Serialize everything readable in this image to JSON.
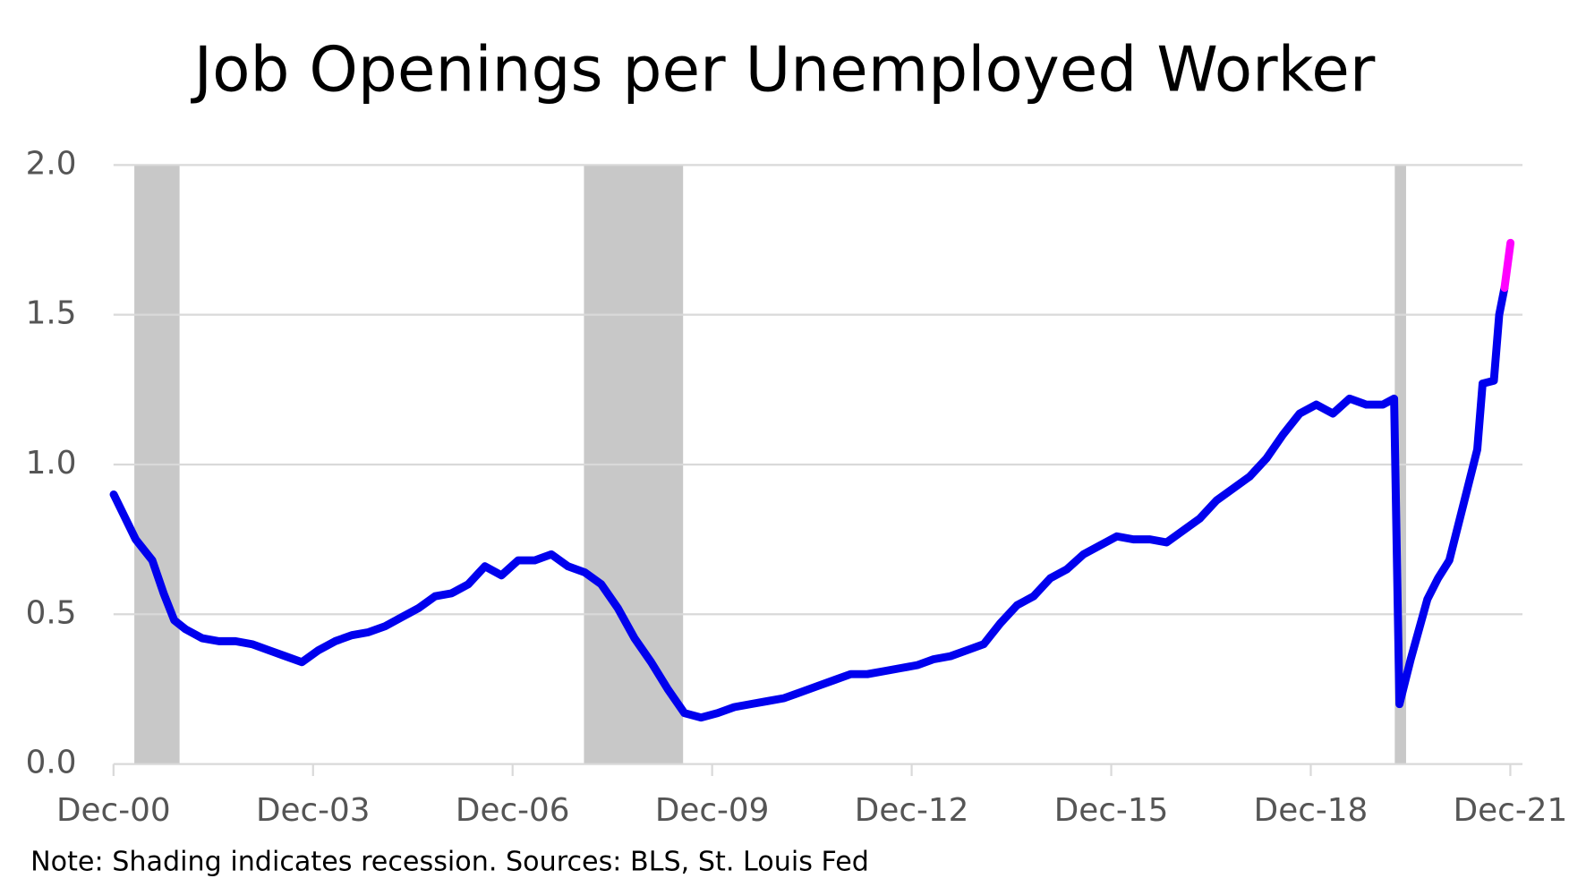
{
  "chart_data": {
    "type": "line",
    "title": "Job Openings per Unemployed Worker",
    "note": "Note: Shading indicates recession. Sources: BLS, St. Louis Fed",
    "x": [
      2000.92,
      2001.25,
      2001.5,
      2001.67,
      2001.83,
      2002.0,
      2002.25,
      2002.5,
      2002.75,
      2003.0,
      2003.25,
      2003.5,
      2003.75,
      2004.0,
      2004.25,
      2004.5,
      2004.75,
      2005.0,
      2005.25,
      2005.5,
      2005.75,
      2006.0,
      2006.25,
      2006.5,
      2006.75,
      2007.0,
      2007.25,
      2007.5,
      2007.75,
      2008.0,
      2008.25,
      2008.5,
      2008.75,
      2009.0,
      2009.25,
      2009.5,
      2009.75,
      2010.0,
      2010.25,
      2010.5,
      2010.75,
      2011.0,
      2011.25,
      2011.5,
      2011.75,
      2012.0,
      2012.25,
      2012.5,
      2012.75,
      2013.0,
      2013.25,
      2013.5,
      2013.75,
      2014.0,
      2014.25,
      2014.5,
      2014.75,
      2015.0,
      2015.25,
      2015.5,
      2015.75,
      2016.0,
      2016.25,
      2016.5,
      2016.75,
      2017.0,
      2017.25,
      2017.5,
      2017.75,
      2018.0,
      2018.25,
      2018.5,
      2018.75,
      2019.0,
      2019.25,
      2019.5,
      2019.75,
      2020.0,
      2020.17,
      2020.25,
      2020.42,
      2020.67,
      2020.83,
      2021.0,
      2021.25,
      2021.42,
      2021.5,
      2021.67,
      2021.75,
      2021.83,
      2021.92
    ],
    "series": [
      {
        "color": "#0000ee",
        "values": [
          0.9,
          0.75,
          0.68,
          0.57,
          0.48,
          0.45,
          0.42,
          0.41,
          0.41,
          0.4,
          0.38,
          0.36,
          0.34,
          0.38,
          0.41,
          0.43,
          0.44,
          0.46,
          0.49,
          0.52,
          0.56,
          0.57,
          0.6,
          0.66,
          0.63,
          0.68,
          0.68,
          0.7,
          0.66,
          0.64,
          0.6,
          0.52,
          0.42,
          0.34,
          0.25,
          0.17,
          0.155,
          0.17,
          0.19,
          0.2,
          0.21,
          0.22,
          0.24,
          0.26,
          0.28,
          0.3,
          0.3,
          0.31,
          0.32,
          0.33,
          0.35,
          0.36,
          0.38,
          0.4,
          0.47,
          0.53,
          0.56,
          0.62,
          0.65,
          0.7,
          0.73,
          0.76,
          0.75,
          0.75,
          0.74,
          0.78,
          0.82,
          0.88,
          0.92,
          0.96,
          1.02,
          1.1,
          1.17,
          1.2,
          1.17,
          1.22,
          1.2,
          1.2,
          1.22,
          0.2,
          0.35,
          0.55,
          0.62,
          0.68,
          0.9,
          1.05,
          1.27,
          1.28,
          1.5,
          1.59,
          null
        ]
      },
      {
        "color": "#ff00ff",
        "values": [
          null,
          null,
          null,
          null,
          null,
          null,
          null,
          null,
          null,
          null,
          null,
          null,
          null,
          null,
          null,
          null,
          null,
          null,
          null,
          null,
          null,
          null,
          null,
          null,
          null,
          null,
          null,
          null,
          null,
          null,
          null,
          null,
          null,
          null,
          null,
          null,
          null,
          null,
          null,
          null,
          null,
          null,
          null,
          null,
          null,
          null,
          null,
          null,
          null,
          null,
          null,
          null,
          null,
          null,
          null,
          null,
          null,
          null,
          null,
          null,
          null,
          null,
          null,
          null,
          null,
          null,
          null,
          null,
          null,
          null,
          null,
          null,
          null,
          null,
          null,
          null,
          null,
          null,
          null,
          null,
          null,
          null,
          null,
          null,
          null,
          null,
          null,
          null,
          null,
          1.59,
          1.74
        ]
      }
    ],
    "recessions": [
      [
        2001.23,
        2001.91
      ],
      [
        2007.99,
        2009.48
      ],
      [
        2020.18,
        2020.35
      ]
    ],
    "shade_color": "#c8c8c8",
    "xlim": [
      2000.917,
      2022.1
    ],
    "xticks": [
      {
        "value": 2000.917,
        "label": "Dec-00"
      },
      {
        "value": 2003.917,
        "label": "Dec-03"
      },
      {
        "value": 2006.917,
        "label": "Dec-06"
      },
      {
        "value": 2009.917,
        "label": "Dec-09"
      },
      {
        "value": 2012.917,
        "label": "Dec-12"
      },
      {
        "value": 2015.917,
        "label": "Dec-15"
      },
      {
        "value": 2018.917,
        "label": "Dec-18"
      },
      {
        "value": 2021.917,
        "label": "Dec-21"
      }
    ],
    "ylim": [
      0,
      2.0
    ],
    "yticks": [
      {
        "value": 0,
        "label": "0.0"
      },
      0.5,
      {
        "value": 1,
        "label": "1.0"
      },
      1.5,
      {
        "value": 2,
        "label": "2.0"
      }
    ],
    "grid": true
  }
}
